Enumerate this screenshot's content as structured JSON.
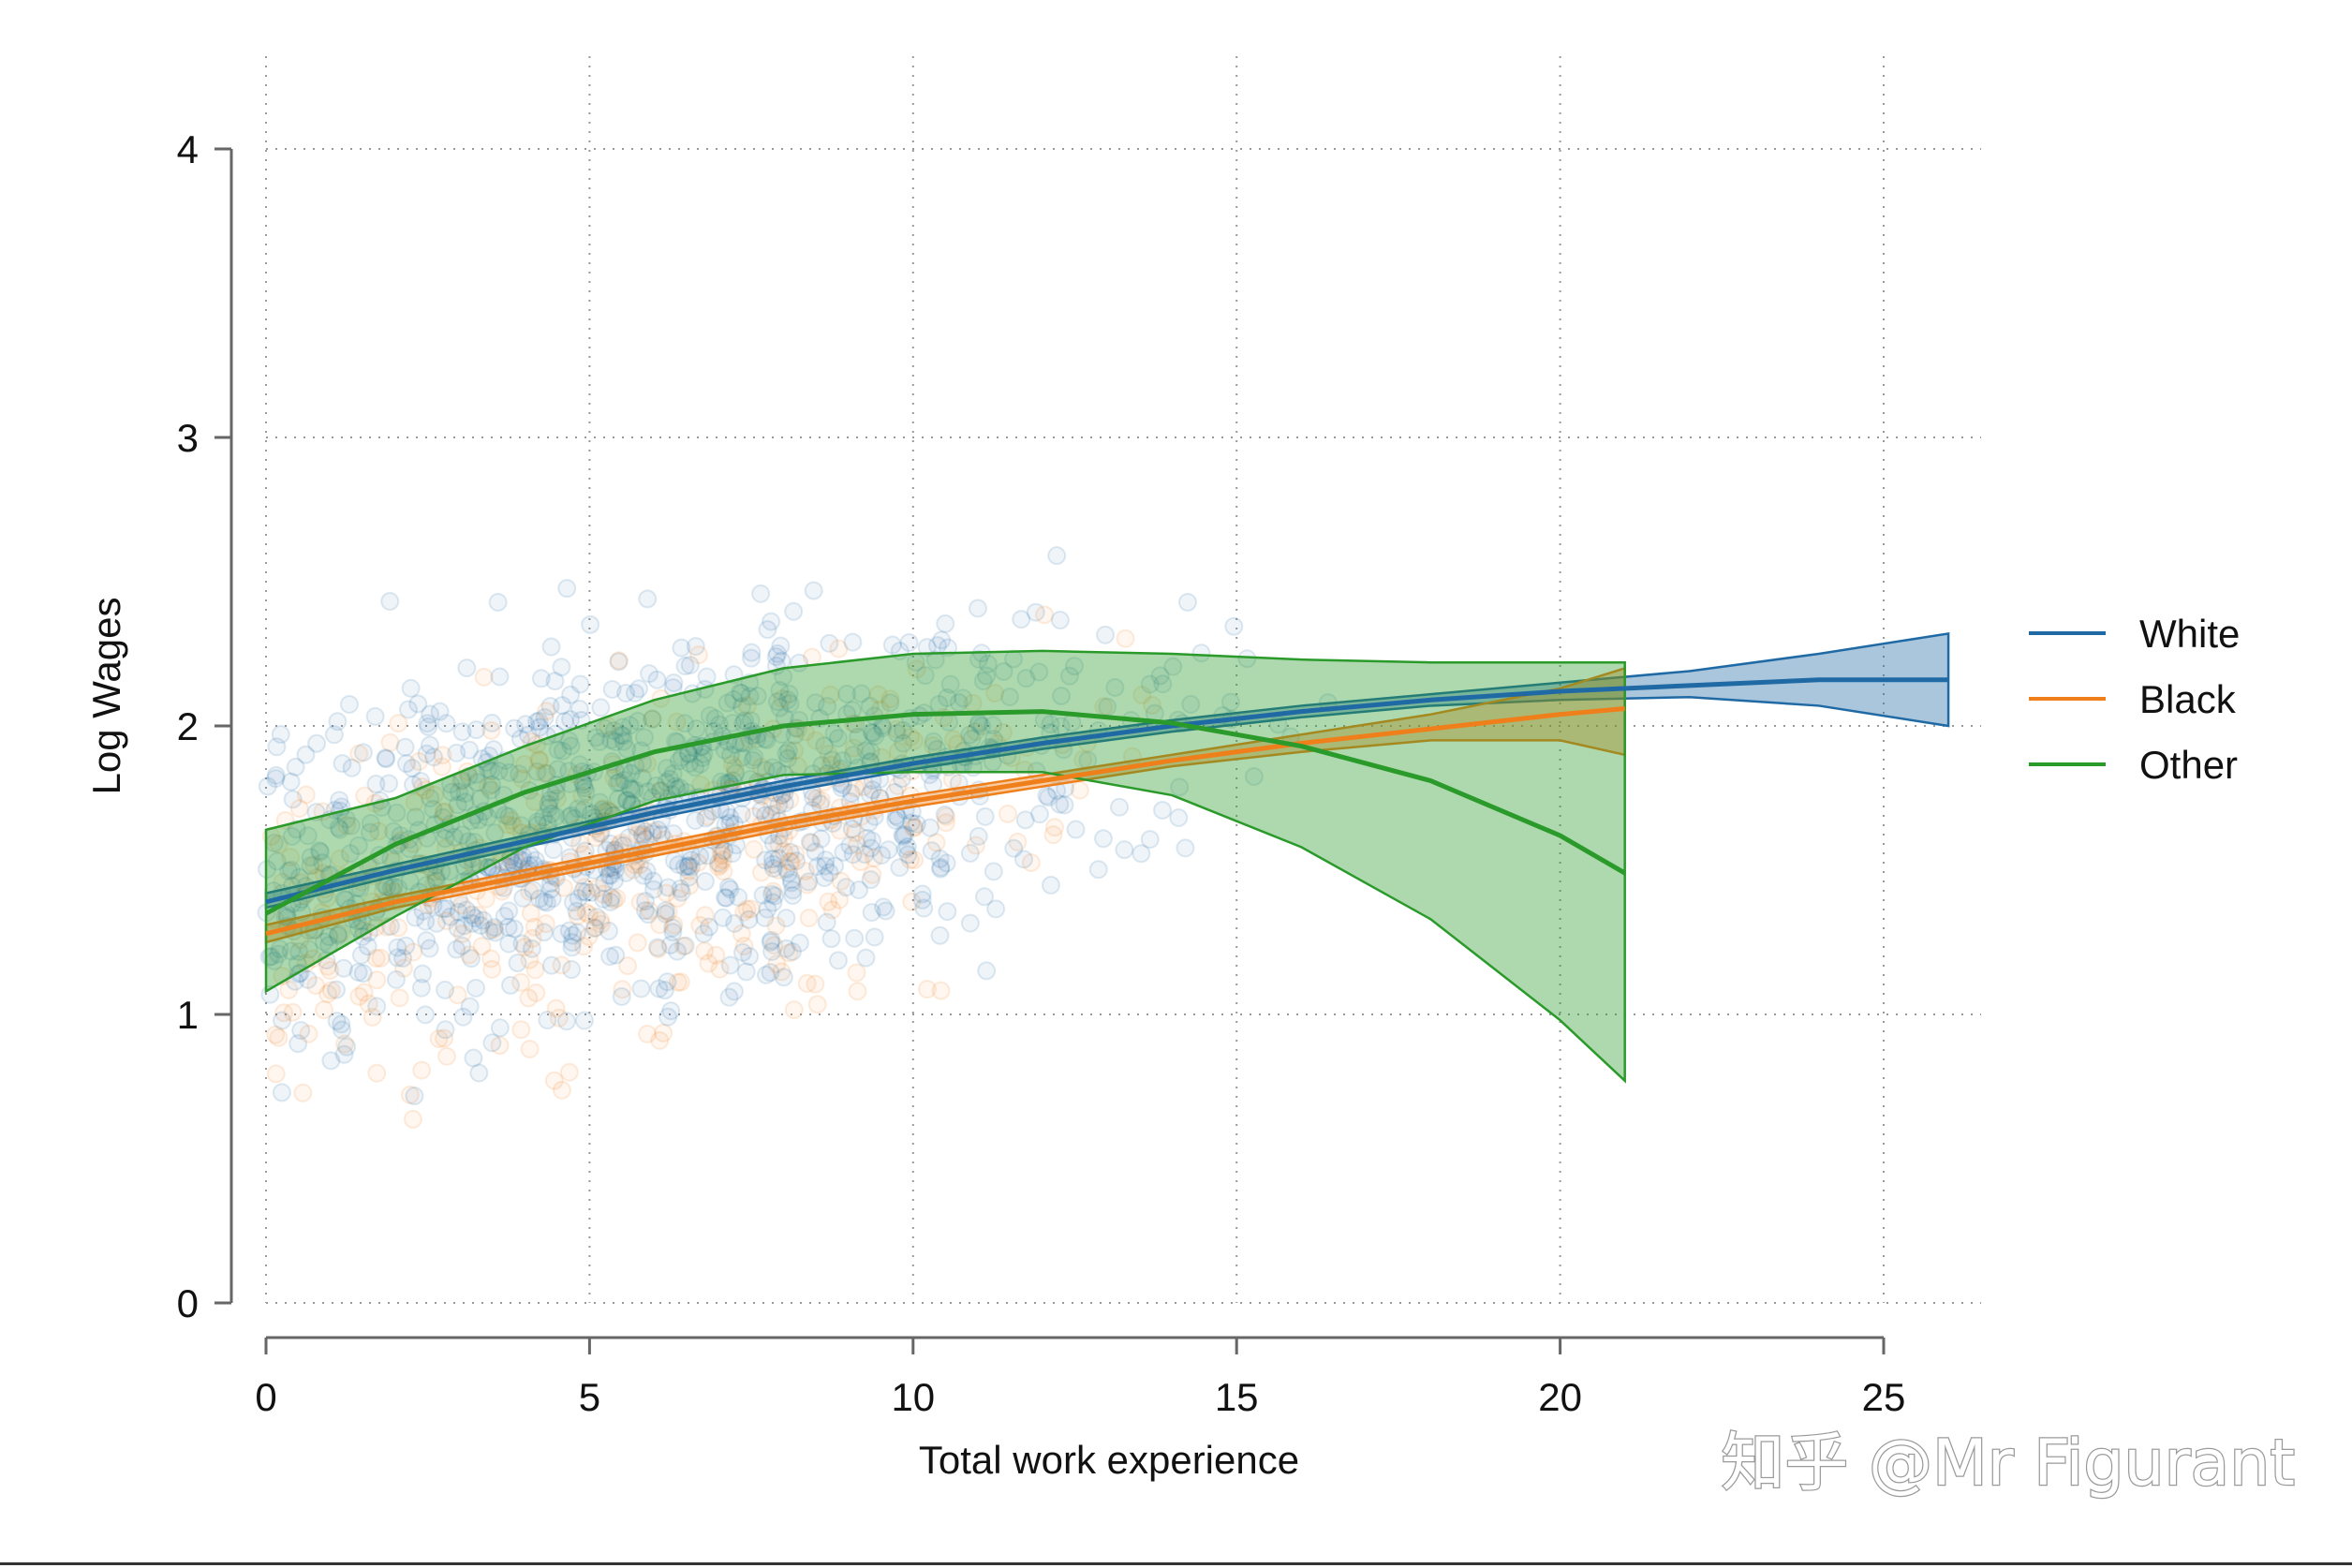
{
  "chart_data": {
    "type": "line",
    "title": "",
    "xlabel": "Total work experience",
    "ylabel": "Log Wages",
    "xlim": [
      0,
      26
    ],
    "ylim": [
      0,
      4.2
    ],
    "xticks": [
      0,
      5,
      10,
      15,
      20,
      25
    ],
    "yticks": [
      0,
      1,
      2,
      3,
      4
    ],
    "x_tick_labels": [
      "0",
      "5",
      "10",
      "15",
      "20",
      "25"
    ],
    "y_tick_labels": [
      "0",
      "1",
      "2",
      "3",
      "4"
    ],
    "grid": true,
    "legend_position": "right",
    "scatter_note": "semi-transparent scatter of individual observations colored by race",
    "series": [
      {
        "name": "White",
        "color": "#1f6aa5",
        "x": [
          0,
          2,
          4,
          6,
          8,
          10,
          12,
          14,
          16,
          18,
          20,
          22,
          24,
          26
        ],
        "y": [
          1.39,
          1.5,
          1.6,
          1.7,
          1.79,
          1.87,
          1.94,
          2.0,
          2.05,
          2.09,
          2.12,
          2.14,
          2.16,
          2.16
        ],
        "lower": [
          1.37,
          1.48,
          1.58,
          1.68,
          1.77,
          1.85,
          1.92,
          1.98,
          2.03,
          2.07,
          2.09,
          2.1,
          2.07,
          2.0
        ],
        "upper": [
          1.42,
          1.52,
          1.62,
          1.72,
          1.81,
          1.89,
          1.96,
          2.02,
          2.07,
          2.11,
          2.15,
          2.19,
          2.25,
          2.32
        ]
      },
      {
        "name": "Black",
        "color": "#ef7f1a",
        "x": [
          0,
          2,
          4,
          6,
          8,
          10,
          12,
          14,
          16,
          18,
          20,
          21
        ],
        "y": [
          1.28,
          1.39,
          1.48,
          1.57,
          1.66,
          1.74,
          1.81,
          1.88,
          1.94,
          1.99,
          2.04,
          2.06
        ],
        "lower": [
          1.25,
          1.37,
          1.46,
          1.55,
          1.64,
          1.72,
          1.79,
          1.86,
          1.91,
          1.95,
          1.95,
          1.9
        ],
        "upper": [
          1.31,
          1.41,
          1.5,
          1.59,
          1.68,
          1.76,
          1.83,
          1.9,
          1.97,
          2.04,
          2.13,
          2.2
        ]
      },
      {
        "name": "Other",
        "color": "#2a9a2a",
        "x": [
          0,
          2,
          4,
          6,
          8,
          10,
          12,
          14,
          16,
          18,
          20,
          21
        ],
        "y": [
          1.35,
          1.59,
          1.77,
          1.91,
          2.0,
          2.04,
          2.05,
          2.01,
          1.93,
          1.81,
          1.62,
          1.49
        ],
        "lower": [
          1.08,
          1.34,
          1.58,
          1.74,
          1.83,
          1.84,
          1.84,
          1.76,
          1.58,
          1.33,
          0.98,
          0.77
        ],
        "upper": [
          1.64,
          1.75,
          1.93,
          2.09,
          2.2,
          2.25,
          2.26,
          2.25,
          2.23,
          2.22,
          2.22,
          2.22
        ]
      }
    ]
  },
  "legend": {
    "items": [
      {
        "label": "White",
        "color": "#1f6aa5"
      },
      {
        "label": "Black",
        "color": "#ef7f1a"
      },
      {
        "label": "Other",
        "color": "#2a9a2a"
      }
    ]
  },
  "watermark": {
    "text": "知乎 @Mr Figurant"
  }
}
